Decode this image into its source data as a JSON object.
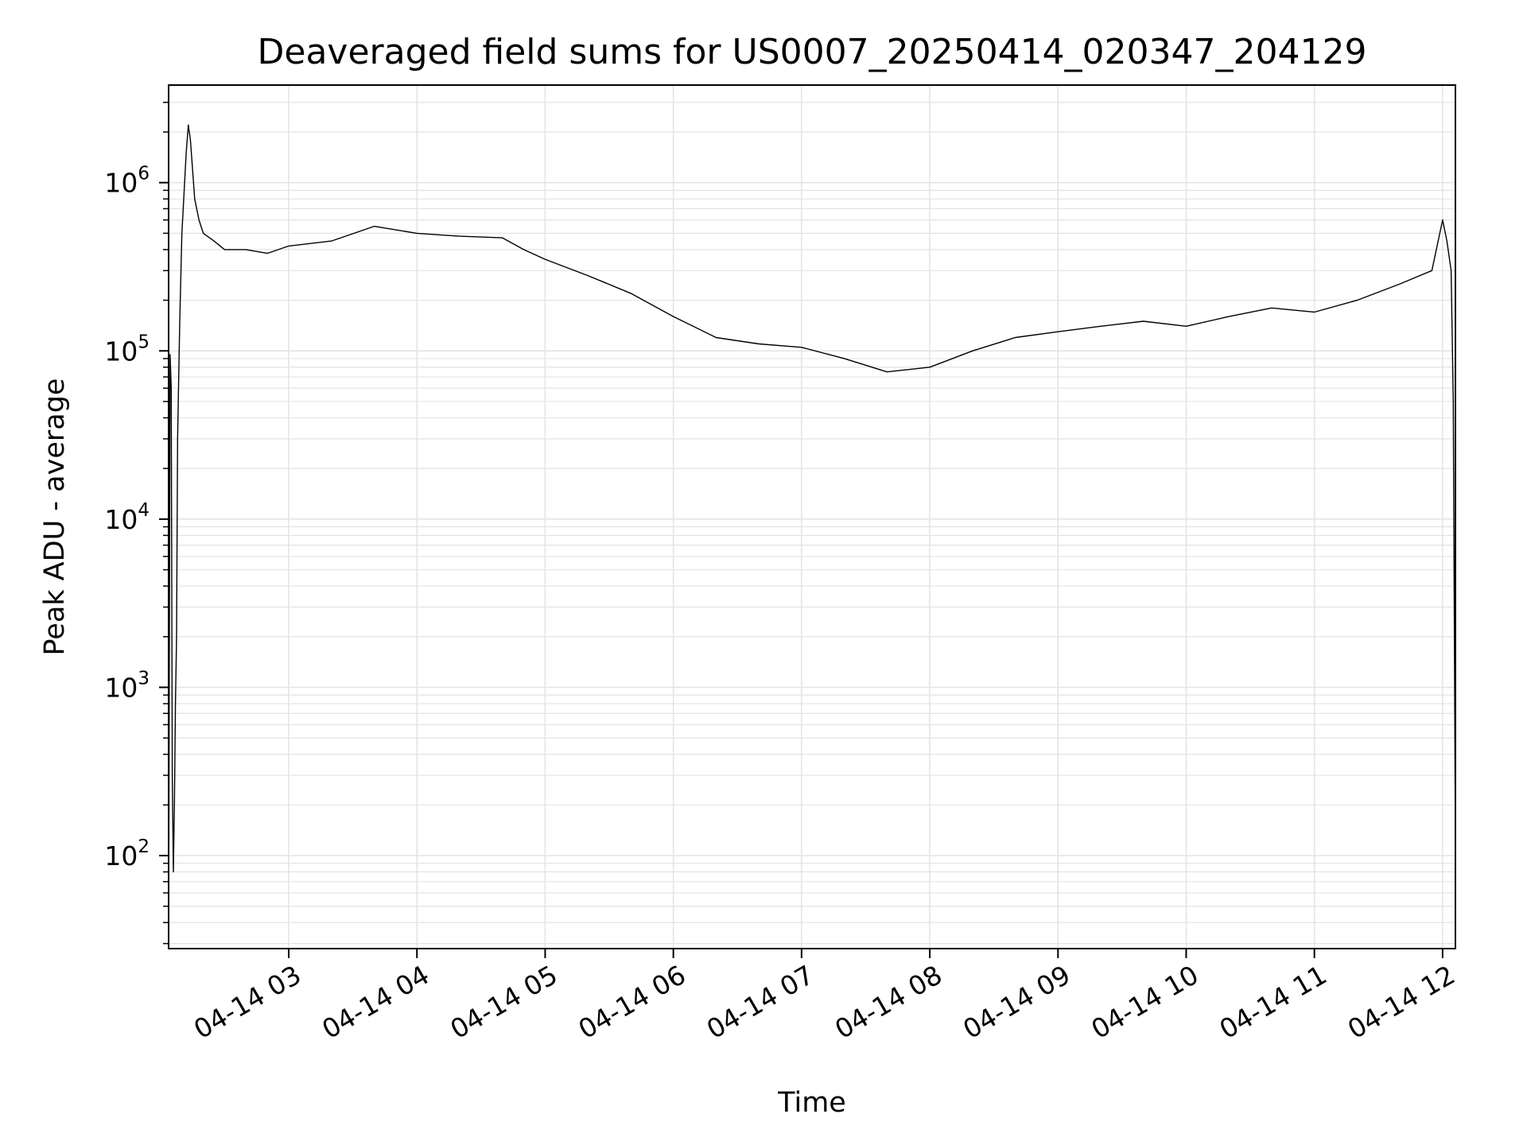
{
  "chart_data": {
    "type": "line",
    "title": "Deaveraged field sums for US0007_20250414_020347_204129",
    "xlabel": "Time",
    "ylabel": "Peak ADU - average",
    "yscale": "log",
    "ylim": [
      28,
      3800000
    ],
    "xlim": [
      "2025-04-14 02:03:47",
      "2025-04-14 12:06:00"
    ],
    "grid": true,
    "line_color": "#000000",
    "grid_color": "#e3e3e3",
    "x_ticks": [
      {
        "label": "04-14 03",
        "value": "2025-04-14 03:00:00"
      },
      {
        "label": "04-14 04",
        "value": "2025-04-14 04:00:00"
      },
      {
        "label": "04-14 05",
        "value": "2025-04-14 05:00:00"
      },
      {
        "label": "04-14 06",
        "value": "2025-04-14 06:00:00"
      },
      {
        "label": "04-14 07",
        "value": "2025-04-14 07:00:00"
      },
      {
        "label": "04-14 08",
        "value": "2025-04-14 08:00:00"
      },
      {
        "label": "04-14 09",
        "value": "2025-04-14 09:00:00"
      },
      {
        "label": "04-14 10",
        "value": "2025-04-14 10:00:00"
      },
      {
        "label": "04-14 11",
        "value": "2025-04-14 11:00:00"
      },
      {
        "label": "04-14 12",
        "value": "2025-04-14 12:00:00"
      }
    ],
    "y_ticks": [
      {
        "base": "10",
        "exp": "2",
        "value": 100
      },
      {
        "base": "10",
        "exp": "3",
        "value": 1000
      },
      {
        "base": "10",
        "exp": "4",
        "value": 10000
      },
      {
        "base": "10",
        "exp": "5",
        "value": 100000
      },
      {
        "base": "10",
        "exp": "6",
        "value": 1000000
      }
    ],
    "series": [
      {
        "x": [
          "2025-04-14 02:03:47",
          "2025-04-14 02:04:30",
          "2025-04-14 02:05:00",
          "2025-04-14 02:05:30",
          "2025-04-14 02:06:00",
          "2025-04-14 02:06:30",
          "2025-04-14 02:07:00",
          "2025-04-14 02:07:30",
          "2025-04-14 02:08:00",
          "2025-04-14 02:09:00",
          "2025-04-14 02:10:00",
          "2025-04-14 02:12:00",
          "2025-04-14 02:13:00",
          "2025-04-14 02:14:00",
          "2025-04-14 02:15:00",
          "2025-04-14 02:16:00",
          "2025-04-14 02:18:00",
          "2025-04-14 02:20:00",
          "2025-04-14 02:25:00",
          "2025-04-14 02:30:00",
          "2025-04-14 02:40:00",
          "2025-04-14 02:50:00",
          "2025-04-14 03:00:00",
          "2025-04-14 03:20:00",
          "2025-04-14 03:40:00",
          "2025-04-14 04:00:00",
          "2025-04-14 04:20:00",
          "2025-04-14 04:40:00",
          "2025-04-14 04:50:00",
          "2025-04-14 05:00:00",
          "2025-04-14 05:20:00",
          "2025-04-14 05:40:00",
          "2025-04-14 06:00:00",
          "2025-04-14 06:20:00",
          "2025-04-14 06:40:00",
          "2025-04-14 07:00:00",
          "2025-04-14 07:20:00",
          "2025-04-14 07:40:00",
          "2025-04-14 08:00:00",
          "2025-04-14 08:20:00",
          "2025-04-14 08:40:00",
          "2025-04-14 09:00:00",
          "2025-04-14 09:20:00",
          "2025-04-14 09:40:00",
          "2025-04-14 10:00:00",
          "2025-04-14 10:20:00",
          "2025-04-14 10:40:00",
          "2025-04-14 11:00:00",
          "2025-04-14 11:20:00",
          "2025-04-14 11:40:00",
          "2025-04-14 11:55:00",
          "2025-04-14 12:00:00",
          "2025-04-14 12:02:00",
          "2025-04-14 12:04:00",
          "2025-04-14 12:05:00",
          "2025-04-14 12:06:00"
        ],
        "y": [
          28,
          95000,
          60000,
          300,
          80,
          200,
          800,
          2000,
          30000,
          150000,
          500000,
          1500000,
          2200000,
          1800000,
          1200000,
          800000,
          600000,
          500000,
          450000,
          400000,
          400000,
          380000,
          420000,
          450000,
          550000,
          500000,
          480000,
          470000,
          400000,
          350000,
          280000,
          220000,
          160000,
          120000,
          110000,
          105000,
          90000,
          75000,
          80000,
          100000,
          120000,
          130000,
          140000,
          150000,
          140000,
          160000,
          180000,
          170000,
          200000,
          250000,
          300000,
          600000,
          450000,
          300000,
          50000,
          100
        ]
      }
    ]
  }
}
